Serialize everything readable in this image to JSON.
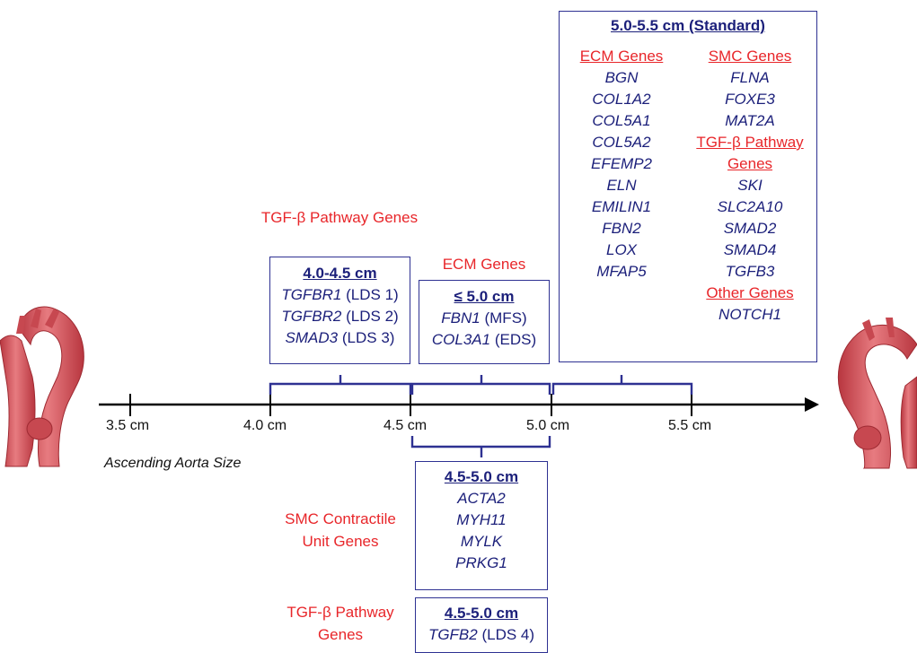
{
  "axis": {
    "label": "Ascending Aorta Size",
    "ticks": [
      "3.5 cm",
      "4.0 cm",
      "4.5 cm",
      "5.0 cm",
      "5.5 cm"
    ]
  },
  "box_400_450": {
    "category": "TGF-β Pathway Genes",
    "title": "4.0-4.5 cm",
    "rows": [
      {
        "gene": "TGFBR1",
        "note": "(LDS 1)"
      },
      {
        "gene": "TGFBR2",
        "note": "(LDS 2)"
      },
      {
        "gene": "SMAD3",
        "note": "(LDS 3)"
      }
    ]
  },
  "box_le_500": {
    "category": "ECM Genes",
    "title": "≤ 5.0 cm",
    "rows": [
      {
        "gene": "FBN1",
        "note": "(MFS)"
      },
      {
        "gene": "COL3A1",
        "note": "(EDS)"
      }
    ]
  },
  "box_standard": {
    "title": "5.0-5.5 cm (Standard)",
    "left_header": "ECM Genes",
    "left_genes": [
      "BGN",
      "COL1A2",
      "COL5A1",
      "COL5A2",
      "EFEMP2",
      "ELN",
      "EMILIN1",
      "FBN2",
      "LOX",
      "MFAP5"
    ],
    "right_header_1": "SMC Genes",
    "right_genes_1": [
      "FLNA",
      "FOXE3",
      "MAT2A"
    ],
    "right_header_2a": "TGF-β Pathway",
    "right_header_2b": "Genes",
    "right_genes_2": [
      "SKI",
      "SLC2A10",
      "SMAD2",
      "SMAD4",
      "TGFB3"
    ],
    "right_header_3": "Other Genes",
    "right_genes_3": [
      "NOTCH1"
    ]
  },
  "box_smc": {
    "category_line1": "SMC Contractile",
    "category_line2": "Unit Genes",
    "title": "4.5-5.0 cm",
    "genes": [
      "ACTA2",
      "MYH11",
      "MYLK",
      "PRKG1"
    ]
  },
  "box_tgfb2": {
    "category_line1": "TGF-β Pathway",
    "category_line2": "Genes",
    "title": "4.5-5.0 cm",
    "gene": "TGFB2",
    "note": "(LDS 4)"
  },
  "colors": {
    "navy": "#1b1f7a",
    "red": "#e8262a",
    "aorta": "#d9535b"
  }
}
